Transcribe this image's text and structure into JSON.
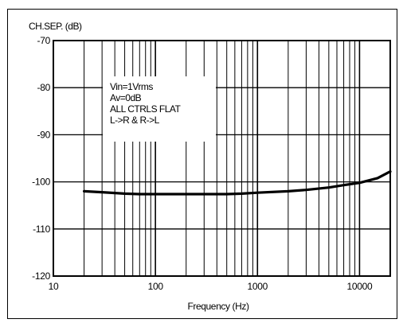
{
  "chart_data": {
    "type": "line",
    "title": "CH.SEP. (dB)",
    "xlabel": "Frequency (Hz)",
    "ylabel": "CH.SEP. (dB)",
    "xscale": "log",
    "xlim": [
      10,
      20000
    ],
    "ylim": [
      -120,
      -70
    ],
    "grid": true,
    "x_ticks": [
      10,
      100,
      1000,
      10000
    ],
    "x_tick_labels": [
      "10",
      "100",
      "1000",
      "10000"
    ],
    "y_ticks": [
      -70,
      -80,
      -90,
      -100,
      -110,
      -120
    ],
    "y_tick_labels": [
      "-70",
      "-80",
      "-90",
      "-100",
      "-110",
      "-120"
    ],
    "annotation": [
      "Vin=1Vrms",
      "Av=0dB",
      "ALL CTRLS FLAT",
      "L->R & R->L"
    ],
    "series": [
      {
        "x": [
          20,
          30,
          50,
          70,
          100,
          200,
          300,
          500,
          700,
          1000,
          2000,
          3000,
          5000,
          7000,
          10000,
          15000,
          20000
        ],
        "values": [
          -102.0,
          -102.2,
          -102.5,
          -102.6,
          -102.6,
          -102.6,
          -102.6,
          -102.6,
          -102.5,
          -102.3,
          -102.0,
          -101.7,
          -101.2,
          -100.7,
          -100.2,
          -99.2,
          -97.8
        ]
      }
    ]
  }
}
